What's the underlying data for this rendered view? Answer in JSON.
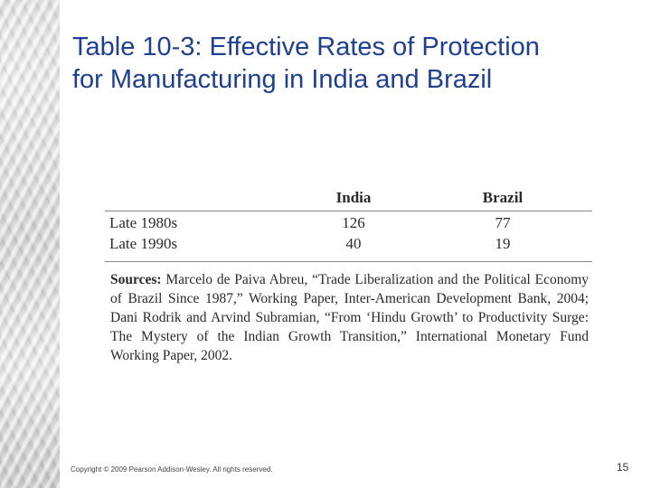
{
  "slide": {
    "title_line1": "Table 10-3: Effective Rates of Protection",
    "title_line2": "for Manufacturing in India and Brazil",
    "copyright": "Copyright © 2009 Pearson Addison-Wesley. All rights reserved.",
    "page_number": "15"
  },
  "table": {
    "headers": [
      "",
      "India",
      "Brazil"
    ],
    "rows": [
      {
        "label": "Late 1980s",
        "india": "126",
        "brazil": "77"
      },
      {
        "label": "Late 1990s",
        "india": "40",
        "brazil": "19"
      }
    ],
    "sources_label": "Sources:",
    "sources_text": "Marcelo de Paiva Abreu, “Trade Liberalization and the Political Economy of Brazil Since 1987,” Working Paper, Inter-American Development Bank, 2004; Dani Rodrik and Arvind Subramian, “From ‘Hindu Growth’ to Productivity Surge: The Mystery of the Indian Growth Transition,” International Monetary Fund Working Paper, 2002."
  }
}
